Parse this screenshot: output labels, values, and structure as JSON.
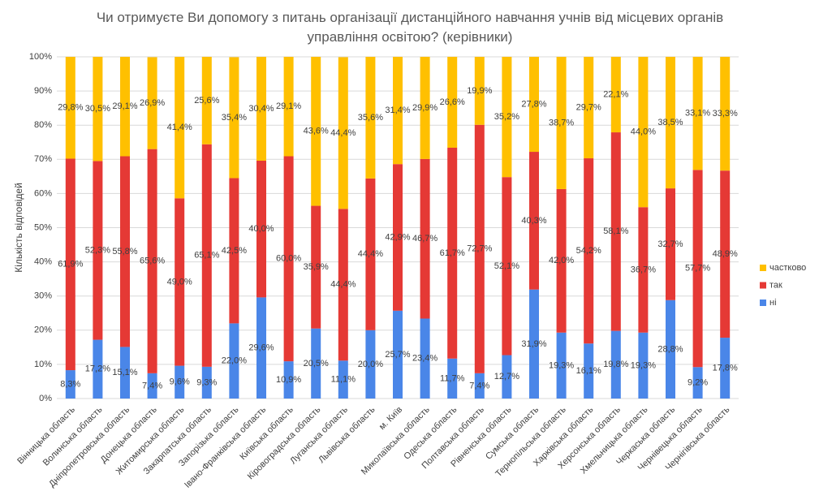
{
  "chart_data": {
    "type": "stacked_bar_percent",
    "title": "Чи отримуєте Ви допомогу з питань організації дистанційного навчання учнів  від місцевих органів управління освітою? (керівники)",
    "y_label": "Кількість відповідей",
    "categories": [
      "Вінницька область",
      "Волинська область",
      "Дніпропетровська область",
      "Донецька область",
      "Житомирська область",
      "Закарпатська область",
      "Запорізька область",
      "Івано-Франківська область",
      "Київська область",
      "Кіровоградська область",
      "Луганська область",
      "Львівська область",
      "м. Київ",
      "Миколаївська область",
      "Одеська область",
      "Полтавська область",
      "Рівненська область",
      "Сумська область",
      "Тернопільська область",
      "Харківська область",
      "Херсонська область",
      "Хмельницька область",
      "Черкаська область",
      "Чернівецька область",
      "Чернігівська область"
    ],
    "series": [
      {
        "name": "ні",
        "color": "#4a86e8",
        "values": [
          8.3,
          17.2,
          15.1,
          7.4,
          9.6,
          9.3,
          22.0,
          29.6,
          10.9,
          20.5,
          11.1,
          20.0,
          25.7,
          23.4,
          11.7,
          7.4,
          12.7,
          31.9,
          19.3,
          16.1,
          19.8,
          19.3,
          28.8,
          9.2,
          17.8
        ],
        "value_labels": [
          "8,3%",
          "17,2%",
          "15,1%",
          "7,4%",
          "9,6%",
          "9,3%",
          "22,0%",
          "29,6%",
          "10,9%",
          "20,5%",
          "11,1%",
          "20,0%",
          "25,7%",
          "23,4%",
          "11,7%",
          "7,4%",
          "12,7%",
          "31,9%",
          "19,3%",
          "16,1%",
          "19,8%",
          "19,3%",
          "28,8%",
          "9,2%",
          "17,8%"
        ]
      },
      {
        "name": "так",
        "color": "#e53935",
        "values": [
          61.9,
          52.3,
          55.8,
          65.6,
          49.0,
          65.1,
          42.5,
          40.0,
          60.0,
          35.9,
          44.4,
          44.4,
          42.9,
          46.7,
          61.7,
          72.7,
          52.1,
          40.3,
          42.0,
          54.2,
          58.1,
          36.7,
          32.7,
          57.7,
          48.9
        ],
        "value_labels": [
          "61,9%",
          "52,3%",
          "55,8%",
          "65,6%",
          "49,0%",
          "65,1%",
          "42,5%",
          "40,0%",
          "60,0%",
          "35,9%",
          "44,4%",
          "44,4%",
          "42,9%",
          "46,7%",
          "61,7%",
          "72,7%",
          "52,1%",
          "40,3%",
          "42,0%",
          "54,2%",
          "58,1%",
          "36,7%",
          "32,7%",
          "57,7%",
          "48,9%"
        ]
      },
      {
        "name": "частково",
        "color": "#ffc000",
        "values": [
          29.8,
          30.5,
          29.1,
          26.9,
          41.4,
          25.6,
          35.4,
          30.4,
          29.1,
          43.6,
          44.4,
          35.6,
          31.4,
          29.9,
          26.6,
          19.9,
          35.2,
          27.8,
          38.7,
          29.7,
          22.1,
          44.0,
          38.5,
          33.1,
          33.3
        ],
        "value_labels": [
          "29,8%",
          "30,5%",
          "29,1%",
          "26,9%",
          "41,4%",
          "25,6%",
          "35,4%",
          "30,4%",
          "29,1%",
          "43,6%",
          "44,4%",
          "35,6%",
          "31,4%",
          "29,9%",
          "26,6%",
          "19,9%",
          "35,2%",
          "27,8%",
          "38,7%",
          "29,7%",
          "22,1%",
          "44,0%",
          "38,5%",
          "33,1%",
          "33,3%"
        ]
      }
    ],
    "ylim": [
      0,
      100
    ],
    "yticks": [
      {
        "value": 0,
        "label": "0%"
      },
      {
        "value": 10,
        "label": "10%"
      },
      {
        "value": 20,
        "label": "20%"
      },
      {
        "value": 30,
        "label": "30%"
      },
      {
        "value": 40,
        "label": "40%"
      },
      {
        "value": 50,
        "label": "50%"
      },
      {
        "value": 60,
        "label": "60%"
      },
      {
        "value": 70,
        "label": "70%"
      },
      {
        "value": 80,
        "label": "80%"
      },
      {
        "value": 90,
        "label": "90%"
      },
      {
        "value": 100,
        "label": "100%"
      }
    ],
    "grid": true,
    "legend": "right"
  }
}
